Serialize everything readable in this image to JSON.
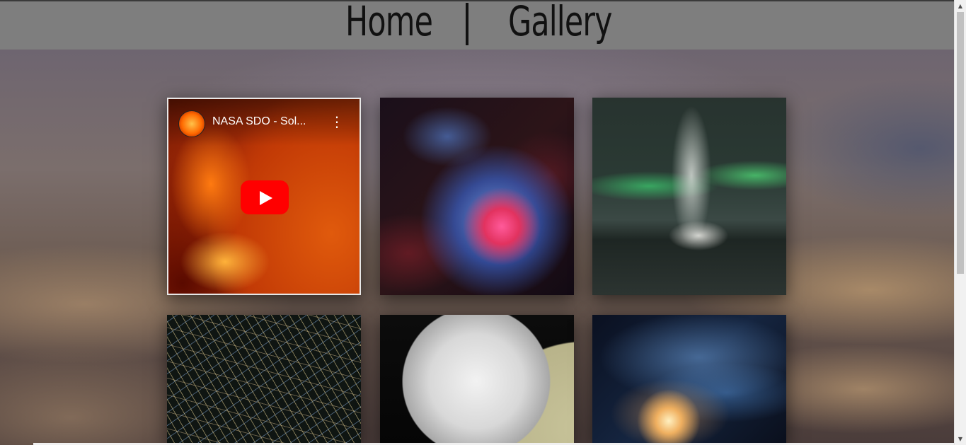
{
  "nav": {
    "home_label": "Home",
    "separator": "|",
    "gallery_label": "Gallery"
  },
  "video": {
    "title": "NASA SDO - Sol...",
    "more_icon": "⋮",
    "channel_icon": "sun-avatar-icon",
    "play_icon": "youtube-play-icon"
  },
  "gallery": {
    "items": [
      {
        "kind": "video",
        "subject": "solar flare"
      },
      {
        "kind": "image",
        "subject": "nebula"
      },
      {
        "kind": "image",
        "subject": "aurora geyser"
      },
      {
        "kind": "image",
        "subject": "light trails"
      },
      {
        "kind": "image",
        "subject": "moon and planet rings"
      },
      {
        "kind": "image",
        "subject": "spiral galaxy"
      }
    ]
  },
  "scrollbar": {
    "up_arrow": "▲",
    "down_arrow": "▼"
  }
}
